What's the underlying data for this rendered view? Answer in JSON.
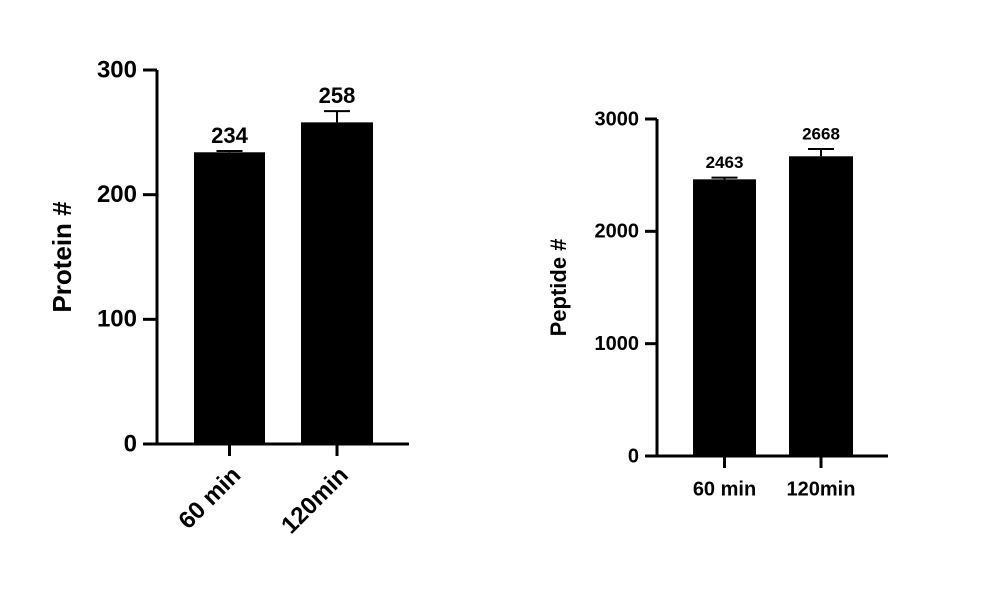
{
  "chart_data": [
    {
      "type": "bar",
      "y_label": "Protein #",
      "categories": [
        "60 min",
        "120min"
      ],
      "values": [
        234,
        258
      ],
      "errors": [
        1,
        9
      ],
      "color": "#000000",
      "ylim": [
        0,
        300
      ],
      "yticks": [
        0,
        100,
        200,
        300
      ]
    },
    {
      "type": "bar",
      "y_label": "Peptide #",
      "categories": [
        "60 min",
        "120min"
      ],
      "values": [
        2463,
        2668
      ],
      "errors": [
        15,
        65
      ],
      "color": "#000000",
      "ylim": [
        0,
        3000
      ],
      "yticks": [
        0,
        1000,
        2000,
        3000
      ]
    }
  ]
}
